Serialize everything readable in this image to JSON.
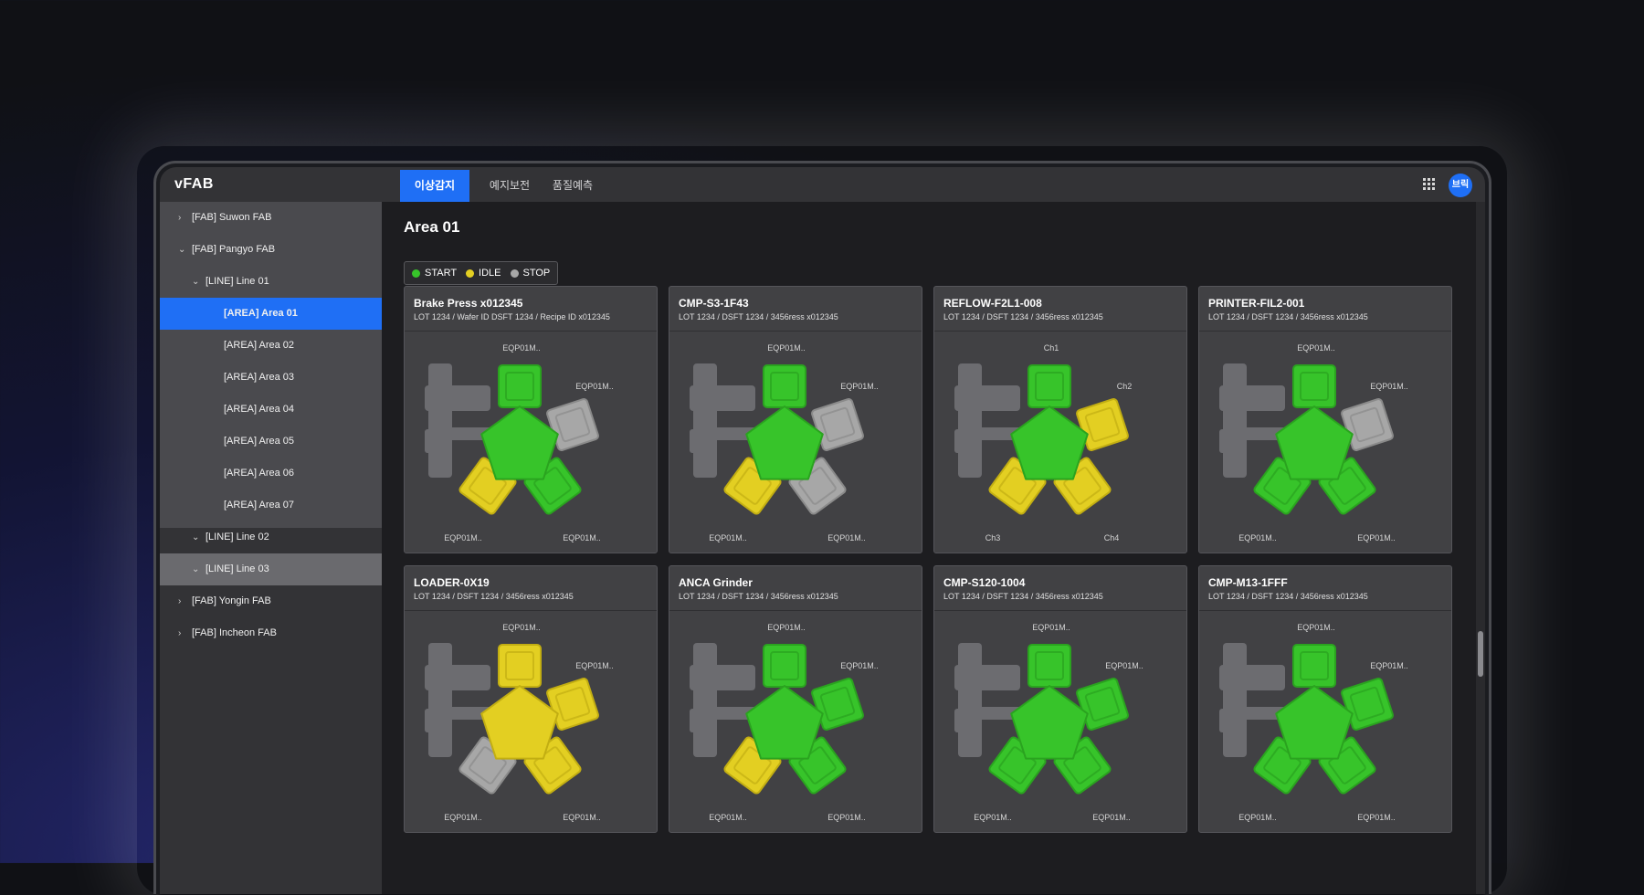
{
  "app": {
    "logo": "vFAB",
    "avatar": "브릭"
  },
  "tabs": [
    {
      "label": "이상감지",
      "active": true
    },
    {
      "label": "예지보전",
      "active": false
    },
    {
      "label": "품질예측",
      "active": false
    }
  ],
  "sidebar": {
    "items": [
      {
        "label": "[FAB] Suwon FAB",
        "level": 0,
        "chevron": "›",
        "state": "normal"
      },
      {
        "label": "[FAB] Pangyo FAB",
        "level": 0,
        "chevron": "⌄",
        "state": "normal"
      },
      {
        "label": "[LINE] Line 01",
        "level": 1,
        "chevron": "⌄",
        "state": "normal"
      },
      {
        "label": "[AREA] Area 01",
        "level": 2,
        "chevron": "",
        "state": "selected"
      },
      {
        "label": "[AREA] Area 02",
        "level": 2,
        "chevron": "",
        "state": "normal"
      },
      {
        "label": "[AREA] Area 03",
        "level": 2,
        "chevron": "",
        "state": "normal"
      },
      {
        "label": "[AREA] Area 04",
        "level": 2,
        "chevron": "",
        "state": "normal"
      },
      {
        "label": "[AREA] Area 05",
        "level": 2,
        "chevron": "",
        "state": "normal"
      },
      {
        "label": "[AREA] Area 06",
        "level": 2,
        "chevron": "",
        "state": "normal"
      },
      {
        "label": "[AREA] Area 07",
        "level": 2,
        "chevron": "",
        "state": "normal"
      },
      {
        "label": "[LINE] Line 02",
        "level": 1,
        "chevron": "⌄",
        "state": "normal"
      },
      {
        "label": "[LINE] Line 03",
        "level": 1,
        "chevron": "⌄",
        "state": "highlight"
      },
      {
        "label": "[FAB] Yongin FAB",
        "level": 0,
        "chevron": "›",
        "state": "dark"
      },
      {
        "label": "[FAB] Incheon FAB",
        "level": 0,
        "chevron": "›",
        "state": "dark"
      }
    ]
  },
  "main": {
    "title": "Area 01"
  },
  "legend": [
    {
      "label": "START",
      "color": "#37c42a"
    },
    {
      "label": "IDLE",
      "color": "#e3cf22"
    },
    {
      "label": "STOP",
      "color": "#a7a7a7"
    }
  ],
  "colors": {
    "start": "#37c42a",
    "idle": "#e3cf22",
    "stop": "#a7a7a7",
    "accent": "#1f6ff5"
  },
  "cards": [
    {
      "name": "Brake Press x012345",
      "sub": "LOT 1234 / Wafer ID DSFT 1234 / Recipe ID x012345",
      "center": "start",
      "chambers": [
        "start",
        "stop",
        "start",
        "idle"
      ],
      "labels": [
        "EQP01M..",
        "EQP01M..",
        "EQP01M..",
        "EQP01M.."
      ]
    },
    {
      "name": "CMP-S3-1F43",
      "sub": "LOT 1234 / DSFT 1234 / 3456ress x012345",
      "center": "start",
      "chambers": [
        "start",
        "stop",
        "stop",
        "idle"
      ],
      "labels": [
        "EQP01M..",
        "EQP01M..",
        "EQP01M..",
        "EQP01M.."
      ]
    },
    {
      "name": "REFLOW-F2L1-008",
      "sub": "LOT 1234 / DSFT 1234 / 3456ress x012345",
      "center": "start",
      "chambers": [
        "start",
        "idle",
        "idle",
        "idle"
      ],
      "labels": [
        "Ch1",
        "Ch2",
        "Ch4",
        "Ch3"
      ]
    },
    {
      "name": "PRINTER-FIL2-001",
      "sub": "LOT 1234 / DSFT 1234 / 3456ress x012345",
      "center": "start",
      "chambers": [
        "start",
        "stop",
        "start",
        "start"
      ],
      "labels": [
        "EQP01M..",
        "EQP01M..",
        "EQP01M..",
        "EQP01M.."
      ]
    },
    {
      "name": "LOADER-0X19",
      "sub": "LOT 1234 / DSFT 1234 / 3456ress x012345",
      "center": "idle",
      "chambers": [
        "idle",
        "idle",
        "idle",
        "stop"
      ],
      "labels": [
        "EQP01M..",
        "EQP01M..",
        "EQP01M..",
        "EQP01M.."
      ]
    },
    {
      "name": "ANCA Grinder",
      "sub": "LOT 1234 / DSFT 1234 / 3456ress x012345",
      "center": "start",
      "chambers": [
        "start",
        "start",
        "start",
        "idle"
      ],
      "labels": [
        "EQP01M..",
        "EQP01M..",
        "EQP01M..",
        "EQP01M.."
      ]
    },
    {
      "name": "CMP-S120-1004",
      "sub": "LOT 1234 / DSFT 1234 / 3456ress x012345",
      "center": "start",
      "chambers": [
        "start",
        "start",
        "start",
        "start"
      ],
      "labels": [
        "EQP01M..",
        "EQP01M..",
        "EQP01M..",
        "EQP01M.."
      ]
    },
    {
      "name": "CMP-M13-1FFF",
      "sub": "LOT 1234 / DSFT 1234 / 3456ress x012345",
      "center": "start",
      "chambers": [
        "start",
        "start",
        "start",
        "start"
      ],
      "labels": [
        "EQP01M..",
        "EQP01M..",
        "EQP01M..",
        "EQP01M.."
      ]
    }
  ]
}
